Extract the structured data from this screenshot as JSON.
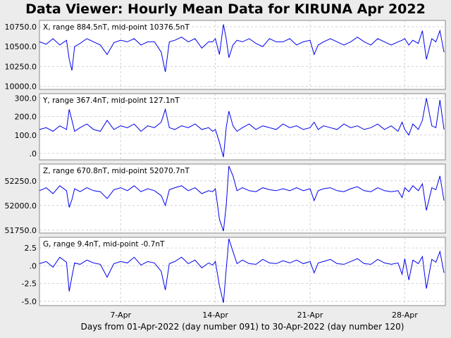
{
  "title": "Data Viewer:  Hourly Mean Data for KIRUNA Apr 2022",
  "xlabel": "Days from 01-Apr-2022 (day number 091) to 30-Apr-2022 (day number 120)",
  "colors": {
    "series": "#0000ee",
    "background": "#ececec",
    "panel": "#ffffff",
    "grid": "#c8c8c8"
  },
  "chart_data": [
    {
      "type": "line",
      "label": "X, range 884.5nT, mid-point 10376.5nT",
      "ylim": [
        9960,
        10830
      ],
      "y_ticks": [
        10000,
        10250,
        10500,
        10750
      ],
      "y_tick_labels": [
        "10000.0",
        "10250.0",
        "10500.0",
        "10750.0"
      ],
      "x_ticks": [
        7,
        14,
        21,
        28
      ],
      "x_tick_labels": [
        "7-Apr",
        "14-Apr",
        "21-Apr",
        "28-Apr"
      ],
      "xlim": [
        1,
        31
      ],
      "grid": true,
      "x": [
        1,
        1.5,
        2,
        2.5,
        3,
        3.2,
        3.4,
        3.6,
        4,
        4.5,
        5,
        5.5,
        6,
        6.5,
        7,
        7.5,
        8,
        8.5,
        9,
        9.5,
        10,
        10.3,
        10.6,
        11,
        11.5,
        12,
        12.5,
        13,
        13.5,
        13.8,
        14,
        14.3,
        14.6,
        14.8,
        15,
        15.3,
        15.6,
        16,
        16.5,
        17,
        17.5,
        18,
        18.5,
        19,
        19.5,
        20,
        20.5,
        21,
        21.3,
        21.6,
        22,
        22.5,
        23,
        23.5,
        24,
        24.5,
        25,
        25.5,
        26,
        26.5,
        27,
        27.5,
        27.8,
        28,
        28.3,
        28.6,
        29,
        29.3,
        29.6,
        30,
        30.3,
        30.6,
        30.9
      ],
      "y": [
        10560,
        10530,
        10600,
        10520,
        10580,
        10340,
        10200,
        10500,
        10540,
        10600,
        10560,
        10520,
        10400,
        10550,
        10580,
        10560,
        10600,
        10520,
        10560,
        10560,
        10430,
        10180,
        10560,
        10580,
        10620,
        10560,
        10600,
        10480,
        10560,
        10560,
        10600,
        10400,
        10780,
        10600,
        10360,
        10520,
        10580,
        10560,
        10600,
        10540,
        10500,
        10600,
        10560,
        10560,
        10600,
        10520,
        10560,
        10580,
        10400,
        10520,
        10560,
        10600,
        10560,
        10520,
        10560,
        10620,
        10560,
        10520,
        10600,
        10560,
        10520,
        10560,
        10580,
        10600,
        10520,
        10580,
        10540,
        10700,
        10340,
        10600,
        10560,
        10700,
        10430
      ]
    },
    {
      "type": "line",
      "label": "Y, range 367.4nT, mid-point 127.1nT",
      "ylim": [
        -35,
        325
      ],
      "y_ticks": [
        0,
        100,
        200,
        300
      ],
      "y_tick_labels": [
        ".0",
        "100.0",
        "200.0",
        "300.0"
      ],
      "x_ticks": [
        7,
        14,
        21,
        28
      ],
      "x_tick_labels": [
        "7-Apr",
        "14-Apr",
        "21-Apr",
        "28-Apr"
      ],
      "xlim": [
        1,
        31
      ],
      "grid": true,
      "x": [
        1,
        1.5,
        2,
        2.5,
        3,
        3.2,
        3.4,
        3.6,
        4,
        4.5,
        5,
        5.5,
        6,
        6.5,
        7,
        7.5,
        8,
        8.5,
        9,
        9.5,
        10,
        10.3,
        10.6,
        11,
        11.5,
        12,
        12.5,
        13,
        13.5,
        13.8,
        14,
        14.3,
        14.6,
        14.8,
        15,
        15.3,
        15.6,
        16,
        16.5,
        17,
        17.5,
        18,
        18.5,
        19,
        19.5,
        20,
        20.5,
        21,
        21.3,
        21.6,
        22,
        22.5,
        23,
        23.5,
        24,
        24.5,
        25,
        25.5,
        26,
        26.5,
        27,
        27.5,
        27.8,
        28,
        28.3,
        28.6,
        29,
        29.3,
        29.6,
        30,
        30.3,
        30.6,
        30.9
      ],
      "y": [
        130,
        140,
        120,
        150,
        130,
        240,
        180,
        120,
        140,
        160,
        130,
        120,
        180,
        130,
        150,
        140,
        160,
        120,
        150,
        140,
        170,
        240,
        140,
        130,
        150,
        140,
        160,
        130,
        140,
        120,
        130,
        60,
        -20,
        140,
        230,
        150,
        120,
        140,
        160,
        130,
        150,
        140,
        130,
        160,
        140,
        150,
        130,
        140,
        170,
        130,
        150,
        140,
        130,
        160,
        140,
        150,
        130,
        140,
        160,
        130,
        150,
        120,
        170,
        130,
        100,
        160,
        130,
        180,
        300,
        150,
        140,
        290,
        130
      ]
    },
    {
      "type": "line",
      "label": "Z, range 670.8nT, mid-point 52070.7nT",
      "ylim": [
        51720,
        52420
      ],
      "y_ticks": [
        51750,
        52000,
        52250
      ],
      "y_tick_labels": [
        "51750.0",
        "52000.0",
        "52250.0"
      ],
      "x_ticks": [
        7,
        14,
        21,
        28
      ],
      "x_tick_labels": [
        "7-Apr",
        "14-Apr",
        "21-Apr",
        "28-Apr"
      ],
      "xlim": [
        1,
        31
      ],
      "grid": true,
      "x": [
        1,
        1.5,
        2,
        2.5,
        3,
        3.2,
        3.4,
        3.6,
        4,
        4.5,
        5,
        5.5,
        6,
        6.5,
        7,
        7.5,
        8,
        8.5,
        9,
        9.5,
        10,
        10.3,
        10.6,
        11,
        11.5,
        12,
        12.5,
        13,
        13.5,
        13.8,
        14,
        14.3,
        14.6,
        14.8,
        15,
        15.3,
        15.6,
        16,
        16.5,
        17,
        17.5,
        18,
        18.5,
        19,
        19.5,
        20,
        20.5,
        21,
        21.3,
        21.6,
        22,
        22.5,
        23,
        23.5,
        24,
        24.5,
        25,
        25.5,
        26,
        26.5,
        27,
        27.5,
        27.8,
        28,
        28.3,
        28.6,
        29,
        29.3,
        29.6,
        30,
        30.3,
        30.6,
        30.9
      ],
      "y": [
        52150,
        52180,
        52120,
        52200,
        52150,
        51980,
        52060,
        52170,
        52140,
        52180,
        52150,
        52140,
        52070,
        52160,
        52180,
        52150,
        52200,
        52140,
        52170,
        52150,
        52100,
        52000,
        52160,
        52180,
        52200,
        52150,
        52180,
        52120,
        52150,
        52140,
        52170,
        51860,
        51740,
        52000,
        52400,
        52300,
        52150,
        52180,
        52150,
        52140,
        52180,
        52160,
        52150,
        52170,
        52150,
        52180,
        52150,
        52170,
        52050,
        52150,
        52170,
        52180,
        52150,
        52140,
        52170,
        52190,
        52150,
        52140,
        52180,
        52150,
        52140,
        52150,
        52080,
        52180,
        52140,
        52200,
        52150,
        52220,
        51950,
        52180,
        52160,
        52300,
        52050
      ]
    },
    {
      "type": "line",
      "label": "G, range 9.4nT, mid-point -0.7nT",
      "ylim": [
        -5.6,
        4.0
      ],
      "y_ticks": [
        -5.0,
        -2.5,
        0,
        2.5
      ],
      "y_tick_labels": [
        "-5.0",
        "-2.5",
        ".0",
        "2.5"
      ],
      "x_ticks": [
        7,
        14,
        21,
        28
      ],
      "x_tick_labels": [
        "7-Apr",
        "14-Apr",
        "21-Apr",
        "28-Apr"
      ],
      "xlim": [
        1,
        31
      ],
      "grid": true,
      "x": [
        1,
        1.5,
        2,
        2.5,
        3,
        3.2,
        3.4,
        3.6,
        4,
        4.5,
        5,
        5.5,
        6,
        6.5,
        7,
        7.5,
        8,
        8.5,
        9,
        9.5,
        10,
        10.3,
        10.6,
        11,
        11.5,
        12,
        12.5,
        13,
        13.5,
        13.8,
        14,
        14.3,
        14.6,
        14.8,
        15,
        15.3,
        15.6,
        16,
        16.5,
        17,
        17.5,
        18,
        18.5,
        19,
        19.5,
        20,
        20.5,
        21,
        21.3,
        21.6,
        22,
        22.5,
        23,
        23.5,
        24,
        24.5,
        25,
        25.5,
        26,
        26.5,
        27,
        27.5,
        27.8,
        28,
        28.3,
        28.6,
        29,
        29.3,
        29.6,
        30,
        30.3,
        30.6,
        30.9
      ],
      "y": [
        0.3,
        0.6,
        -0.2,
        1.2,
        0.5,
        -3.6,
        -1.5,
        0.4,
        0.2,
        0.8,
        0.4,
        0.2,
        -1.6,
        0.3,
        0.6,
        0.4,
        1.2,
        0.1,
        0.6,
        0.4,
        -0.8,
        -3.4,
        0.3,
        0.6,
        1.2,
        0.3,
        0.8,
        -0.3,
        0.4,
        0.1,
        0.6,
        -2.8,
        -5.2,
        -0.5,
        3.8,
        2.0,
        0.3,
        0.8,
        0.3,
        0.2,
        0.9,
        0.4,
        0.3,
        0.7,
        0.4,
        0.8,
        0.3,
        0.6,
        -1.0,
        0.4,
        0.6,
        0.9,
        0.3,
        0.2,
        0.6,
        1.0,
        0.3,
        0.2,
        0.9,
        0.4,
        0.2,
        0.4,
        -1.2,
        1.0,
        -2.0,
        0.8,
        0.3,
        1.3,
        -3.2,
        0.9,
        0.5,
        2.0,
        -1.0
      ]
    }
  ]
}
